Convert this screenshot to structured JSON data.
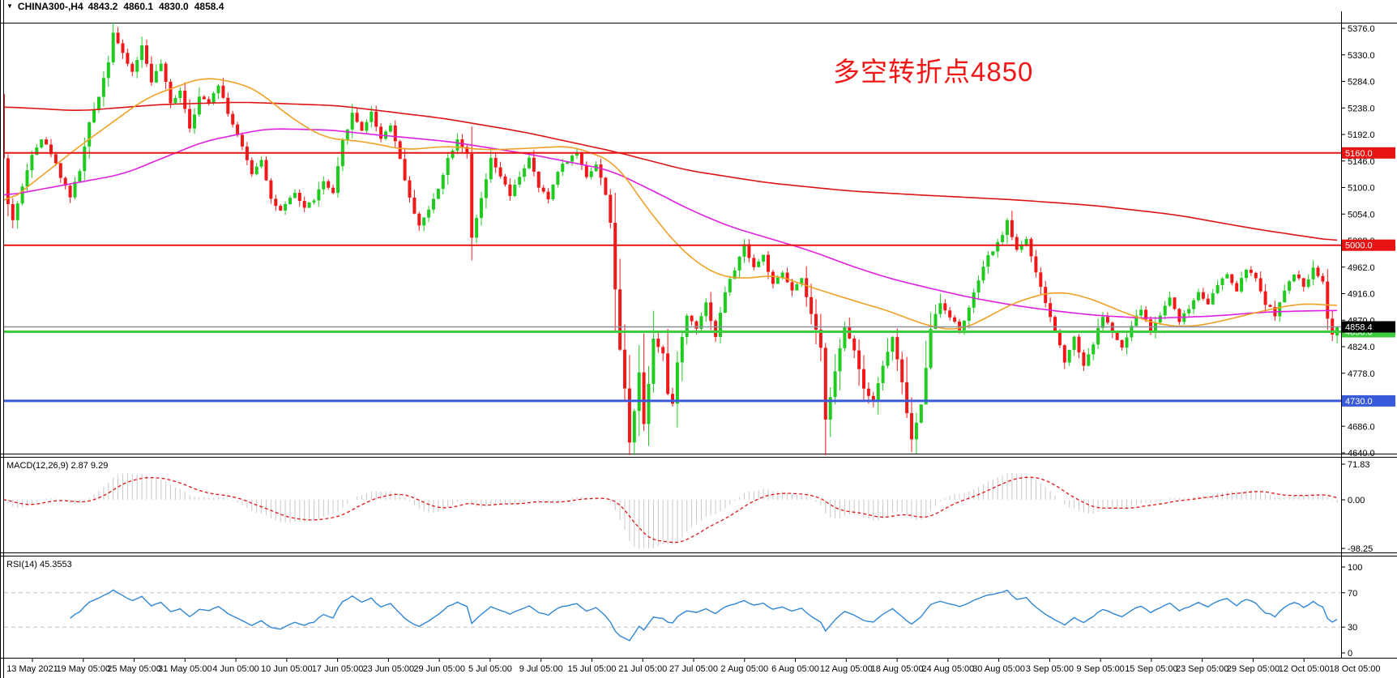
{
  "window": {
    "info_bar": {
      "dropdown_icon": "▼",
      "symbol_period": "CHINA300-,H4",
      "open": "4843.2",
      "high": "4860.1",
      "low": "4830.0",
      "close": "4858.4"
    }
  },
  "annotation": {
    "text": "多空转折点4850",
    "color": "#f21717"
  },
  "chart_data": {
    "type": "candlestick",
    "symbol": "CHINA300-",
    "timeframe": "H4",
    "title": "CHINA300-,H4 4843.2 4860.1 4830.0 4858.4",
    "colors": {
      "bull": "#1ecb1e",
      "bear": "#f01818",
      "ma_slow": "#dd1414",
      "ma_mid": "#e televisions020e0",
      "ma_fast": "#f0a024",
      "macd_hist": "#c8c8c8",
      "macd_signal": "#e01414",
      "rsi_line": "#2e86d5",
      "level_dash": "#c0c0c0",
      "hline_red": "#e81414",
      "hline_green": "#3ecb3e",
      "hline_blue": "#3a5bd9",
      "current_line": "#8a8f98",
      "current_tag_bg": "#000000"
    },
    "price_axis": {
      "ticks": [
        5376.0,
        5330.0,
        5284.0,
        5238.0,
        5192.0,
        5146.0,
        5100.0,
        5054.0,
        5008.0,
        4962.0,
        4916.0,
        4870.0,
        4824.0,
        4778.0,
        4732.0,
        4686.0,
        4640.0
      ],
      "ylim": [
        4635.5,
        5405.5
      ],
      "decimals": 1
    },
    "hlines": [
      {
        "price": 5160.0,
        "label": "5160.0",
        "color": "#e81414",
        "width": 2,
        "tag_text": "#ffffff"
      },
      {
        "price": 5000.0,
        "label": "5000.0",
        "color": "#e81414",
        "width": 2,
        "tag_text": "#ffffff"
      },
      {
        "price": 4850.0,
        "label": "4850.0",
        "color": "#3ecb3e",
        "width": 3,
        "tag_text": "#ffffff"
      },
      {
        "price": 4730.0,
        "label": "4730.0",
        "color": "#3a5bd9",
        "width": 3,
        "tag_text": "#ffffff"
      }
    ],
    "current_price": {
      "value": 4858.4,
      "label": "4858.4"
    },
    "time_labels": [
      "13 May 2021",
      "19 May 05:00",
      "25 May 05:00",
      "31 May 05:00",
      "4 Jun 05:00",
      "10 Jun 05:00",
      "17 Jun 05:00",
      "23 Jun 05:00",
      "29 Jun 05:00",
      "5 Jul 05:00",
      "9 Jul 05:00",
      "15 Jul 05:00",
      "21 Jul 05:00",
      "27 Jul 05:00",
      "2 Aug 05:00",
      "6 Aug 05:00",
      "12 Aug 05:00",
      "18 Aug 05:00",
      "24 Aug 05:00",
      "30 Aug 05:00",
      "3 Sep 05:00",
      "9 Sep 05:00",
      "15 Sep 05:00",
      "23 Sep 05:00",
      "29 Sep 05:00",
      "12 Oct 05:00",
      "18 Oct 05:00"
    ],
    "num_candles": 280,
    "first_open": 5262,
    "close_path_anchors": [
      [
        0,
        5150
      ],
      [
        1,
        5070
      ],
      [
        2,
        5045
      ],
      [
        4,
        5100
      ],
      [
        6,
        5160
      ],
      [
        8,
        5185
      ],
      [
        10,
        5160
      ],
      [
        12,
        5120
      ],
      [
        14,
        5085
      ],
      [
        16,
        5130
      ],
      [
        18,
        5210
      ],
      [
        20,
        5260
      ],
      [
        22,
        5320
      ],
      [
        23,
        5370
      ],
      [
        25,
        5330
      ],
      [
        27,
        5300
      ],
      [
        29,
        5345
      ],
      [
        31,
        5285
      ],
      [
        33,
        5315
      ],
      [
        35,
        5245
      ],
      [
        37,
        5270
      ],
      [
        39,
        5205
      ],
      [
        41,
        5255
      ],
      [
        43,
        5250
      ],
      [
        45,
        5280
      ],
      [
        47,
        5230
      ],
      [
        49,
        5190
      ],
      [
        52,
        5125
      ],
      [
        54,
        5150
      ],
      [
        56,
        5080
      ],
      [
        58,
        5058
      ],
      [
        61,
        5090
      ],
      [
        63,
        5065
      ],
      [
        65,
        5080
      ],
      [
        67,
        5110
      ],
      [
        69,
        5088
      ],
      [
        71,
        5180
      ],
      [
        73,
        5228
      ],
      [
        75,
        5200
      ],
      [
        77,
        5230
      ],
      [
        79,
        5185
      ],
      [
        81,
        5210
      ],
      [
        83,
        5150
      ],
      [
        85,
        5080
      ],
      [
        87,
        5035
      ],
      [
        89,
        5060
      ],
      [
        91,
        5100
      ],
      [
        93,
        5150
      ],
      [
        95,
        5185
      ],
      [
        97,
        5160
      ],
      [
        98,
        5010
      ],
      [
        100,
        5080
      ],
      [
        102,
        5148
      ],
      [
        104,
        5120
      ],
      [
        106,
        5085
      ],
      [
        108,
        5120
      ],
      [
        110,
        5150
      ],
      [
        112,
        5100
      ],
      [
        114,
        5080
      ],
      [
        116,
        5130
      ],
      [
        118,
        5148
      ],
      [
        120,
        5160
      ],
      [
        122,
        5120
      ],
      [
        124,
        5140
      ],
      [
        126,
        5090
      ],
      [
        127,
        5040
      ],
      [
        128,
        4920
      ],
      [
        129,
        4820
      ],
      [
        130,
        4750
      ],
      [
        131,
        4660
      ],
      [
        132,
        4715
      ],
      [
        133,
        4780
      ],
      [
        134,
        4690
      ],
      [
        135,
        4762
      ],
      [
        136,
        4840
      ],
      [
        138,
        4812
      ],
      [
        139,
        4742
      ],
      [
        140,
        4722
      ],
      [
        141,
        4800
      ],
      [
        143,
        4878
      ],
      [
        145,
        4858
      ],
      [
        147,
        4900
      ],
      [
        149,
        4842
      ],
      [
        151,
        4920
      ],
      [
        153,
        4958
      ],
      [
        155,
        5000
      ],
      [
        157,
        4962
      ],
      [
        159,
        4982
      ],
      [
        161,
        4930
      ],
      [
        163,
        4952
      ],
      [
        165,
        4920
      ],
      [
        167,
        4940
      ],
      [
        169,
        4880
      ],
      [
        171,
        4820
      ],
      [
        172,
        4700
      ],
      [
        174,
        4780
      ],
      [
        176,
        4858
      ],
      [
        178,
        4820
      ],
      [
        180,
        4752
      ],
      [
        182,
        4732
      ],
      [
        184,
        4790
      ],
      [
        186,
        4840
      ],
      [
        188,
        4760
      ],
      [
        190,
        4662
      ],
      [
        192,
        4722
      ],
      [
        194,
        4858
      ],
      [
        196,
        4900
      ],
      [
        198,
        4878
      ],
      [
        200,
        4852
      ],
      [
        202,
        4890
      ],
      [
        204,
        4940
      ],
      [
        206,
        4980
      ],
      [
        208,
        5002
      ],
      [
        210,
        5040
      ],
      [
        212,
        4992
      ],
      [
        214,
        5012
      ],
      [
        216,
        4950
      ],
      [
        218,
        4900
      ],
      [
        220,
        4850
      ],
      [
        222,
        4800
      ],
      [
        224,
        4840
      ],
      [
        226,
        4792
      ],
      [
        228,
        4830
      ],
      [
        230,
        4878
      ],
      [
        232,
        4850
      ],
      [
        234,
        4820
      ],
      [
        236,
        4860
      ],
      [
        238,
        4890
      ],
      [
        240,
        4850
      ],
      [
        242,
        4880
      ],
      [
        244,
        4910
      ],
      [
        246,
        4870
      ],
      [
        248,
        4890
      ],
      [
        250,
        4920
      ],
      [
        252,
        4900
      ],
      [
        254,
        4930
      ],
      [
        256,
        4950
      ],
      [
        258,
        4920
      ],
      [
        260,
        4960
      ],
      [
        262,
        4940
      ],
      [
        264,
        4900
      ],
      [
        266,
        4880
      ],
      [
        268,
        4920
      ],
      [
        270,
        4950
      ],
      [
        272,
        4930
      ],
      [
        274,
        4958
      ],
      [
        276,
        4940
      ],
      [
        277,
        4872
      ],
      [
        278,
        4848
      ],
      [
        279,
        4858.4
      ]
    ],
    "last_candle": {
      "open": 4843.2,
      "high": 4860.1,
      "low": 4830.0,
      "close": 4858.4
    },
    "ma_lines": [
      {
        "name": "MA slow",
        "color": "#dd1414",
        "anchors": [
          [
            0,
            5240
          ],
          [
            16,
            5233
          ],
          [
            33,
            5244
          ],
          [
            50,
            5248
          ],
          [
            70,
            5242
          ],
          [
            92,
            5220
          ],
          [
            109,
            5196
          ],
          [
            128,
            5162
          ],
          [
            143,
            5130
          ],
          [
            160,
            5108
          ],
          [
            177,
            5094
          ],
          [
            194,
            5086
          ],
          [
            211,
            5079
          ],
          [
            228,
            5069
          ],
          [
            245,
            5053
          ],
          [
            262,
            5028
          ],
          [
            279,
            5007
          ]
        ]
      },
      {
        "name": "MA mid",
        "color": "#e020e0",
        "anchors": [
          [
            0,
            5085
          ],
          [
            25,
            5123
          ],
          [
            42,
            5180
          ],
          [
            55,
            5202
          ],
          [
            68,
            5200
          ],
          [
            76,
            5193
          ],
          [
            93,
            5180
          ],
          [
            110,
            5158
          ],
          [
            127,
            5130
          ],
          [
            135,
            5098
          ],
          [
            144,
            5060
          ],
          [
            152,
            5032
          ],
          [
            161,
            5010
          ],
          [
            169,
            4990
          ],
          [
            178,
            4962
          ],
          [
            186,
            4941
          ],
          [
            195,
            4923
          ],
          [
            203,
            4908
          ],
          [
            212,
            4895
          ],
          [
            220,
            4886
          ],
          [
            229,
            4878
          ],
          [
            240,
            4873
          ],
          [
            253,
            4877
          ],
          [
            264,
            4884
          ],
          [
            272,
            4886
          ],
          [
            279,
            4887
          ]
        ]
      },
      {
        "name": "MA fast",
        "color": "#f0a024",
        "anchors": [
          [
            0,
            5068
          ],
          [
            16,
            5172
          ],
          [
            30,
            5256
          ],
          [
            42,
            5292
          ],
          [
            50,
            5280
          ],
          [
            54,
            5264
          ],
          [
            59,
            5228
          ],
          [
            67,
            5186
          ],
          [
            76,
            5179
          ],
          [
            84,
            5165
          ],
          [
            93,
            5172
          ],
          [
            101,
            5165
          ],
          [
            110,
            5168
          ],
          [
            119,
            5172
          ],
          [
            128,
            5144
          ],
          [
            135,
            5060
          ],
          [
            142,
            4990
          ],
          [
            149,
            4948
          ],
          [
            156,
            4941
          ],
          [
            161,
            4950
          ],
          [
            169,
            4927
          ],
          [
            177,
            4906
          ],
          [
            186,
            4884
          ],
          [
            190,
            4870
          ],
          [
            195,
            4857
          ],
          [
            200,
            4852
          ],
          [
            206,
            4875
          ],
          [
            210,
            4895
          ],
          [
            215,
            4910
          ],
          [
            220,
            4920
          ],
          [
            226,
            4912
          ],
          [
            231,
            4895
          ],
          [
            237,
            4875
          ],
          [
            242,
            4862
          ],
          [
            248,
            4858
          ],
          [
            253,
            4865
          ],
          [
            259,
            4877
          ],
          [
            265,
            4889
          ],
          [
            270,
            4897
          ],
          [
            274,
            4899
          ],
          [
            279,
            4894
          ]
        ]
      }
    ],
    "macd": {
      "label": "MACD(12,26,9) 2.87 9.29",
      "params": [
        12,
        26,
        9
      ],
      "last_main": 2.87,
      "last_signal": 9.29,
      "axis_labels": [
        71.83,
        0.0,
        -98.25
      ]
    },
    "rsi": {
      "label": "RSI(14) 45.3553",
      "period": 14,
      "last": 45.3553,
      "axis_labels": [
        100,
        70,
        30,
        0
      ],
      "levels": [
        70,
        30
      ]
    }
  }
}
